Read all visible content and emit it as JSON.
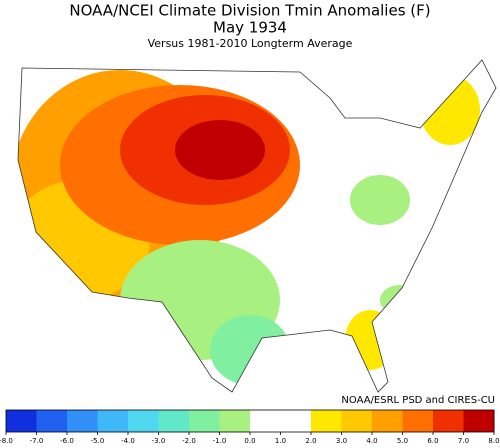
{
  "title": "NOAA/NCEI Climate Division Tmin Anomalies (F)",
  "subtitle": "May 1934",
  "caption": "Versus 1981-2010 Longterm Average",
  "credit": "NOAA/ESRL PSD and CIRES-CU",
  "colorbar": {
    "colors": [
      "#1030e0",
      "#2060f0",
      "#3090f8",
      "#40b8f8",
      "#50d8f0",
      "#60e8c8",
      "#80f0a0",
      "#a8f080",
      "#ffffff",
      "#ffffff",
      "#ffe800",
      "#ffc800",
      "#ffa000",
      "#ff7000",
      "#f03000",
      "#c00000"
    ],
    "ticks": [
      {
        "value": -8,
        "label": "-8.0"
      },
      {
        "value": -7,
        "label": "-7.0"
      },
      {
        "value": -6,
        "label": "-6.0"
      },
      {
        "value": -5,
        "label": "-5.0"
      },
      {
        "value": -4,
        "label": "-4.0"
      },
      {
        "value": -3,
        "label": "-3.0"
      },
      {
        "value": -2,
        "label": "-2.0"
      },
      {
        "value": -1,
        "label": "-1.0"
      },
      {
        "value": 0,
        "label": "0.0"
      },
      {
        "value": 1,
        "label": "1.0"
      },
      {
        "value": 2,
        "label": "2.0"
      },
      {
        "value": 3,
        "label": "3.0"
      },
      {
        "value": 4,
        "label": "4.0"
      },
      {
        "value": 5,
        "label": "5.0"
      },
      {
        "value": 6,
        "label": "6.0"
      },
      {
        "value": 7,
        "label": "7.0"
      },
      {
        "value": 8,
        "label": "8.0"
      }
    ]
  }
}
